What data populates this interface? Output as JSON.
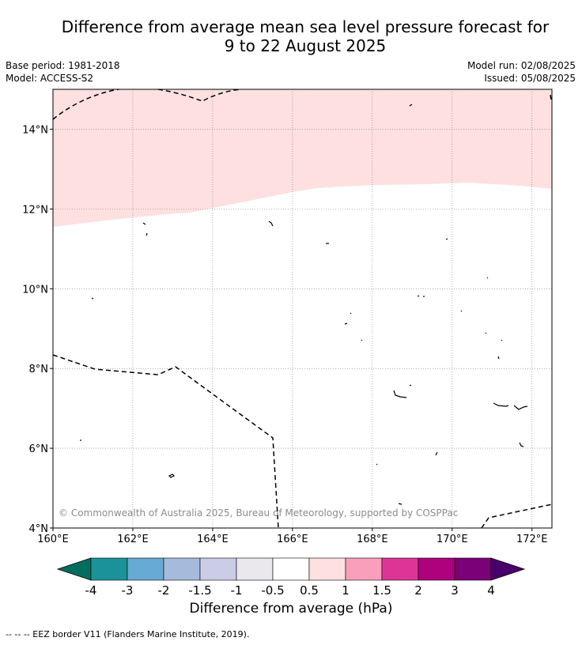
{
  "title": {
    "line1": "Difference from average mean sea level pressure forecast for",
    "line2": "9 to 22 August 2025"
  },
  "meta": {
    "base_period": "Base period: 1981-2018",
    "model": "Model: ACCESS-S2",
    "model_run": "Model run: 02/08/2025",
    "issued": "Issued: 05/08/2025"
  },
  "map": {
    "lon_range": [
      160,
      172.5
    ],
    "lat_range": [
      4,
      15
    ],
    "x_ticks": [
      "160°E",
      "162°E",
      "164°E",
      "166°E",
      "168°E",
      "170°E",
      "172°E"
    ],
    "y_ticks": [
      "4°N",
      "6°N",
      "8°N",
      "10°N",
      "12°N",
      "14°N"
    ],
    "grid": true,
    "copyright": "© Commonwealth of Australia 2025, Bureau of Meteorology, supported by COSPPac",
    "anomaly_region_color": "#fde0df",
    "anomaly_region_category": "0.5 to 1 hPa"
  },
  "legend": {
    "ticks": [
      "-4",
      "-3",
      "-2",
      "-1.5",
      "-1",
      "-0.5",
      "0.5",
      "1",
      "1.5",
      "2",
      "3",
      "4"
    ],
    "colors": [
      "#006d5e",
      "#1b9299",
      "#67aad4",
      "#a6bbdb",
      "#cbcde6",
      "#eae8ed",
      "#ffffff",
      "#fde0df",
      "#f99fbc",
      "#dd3497",
      "#ae017e",
      "#7a0177",
      "#49006a"
    ],
    "caption": "Difference from average (hPa)"
  },
  "footnote": "--  --  -- EEZ border V11 (Flanders Marine Institute, 2019)."
}
